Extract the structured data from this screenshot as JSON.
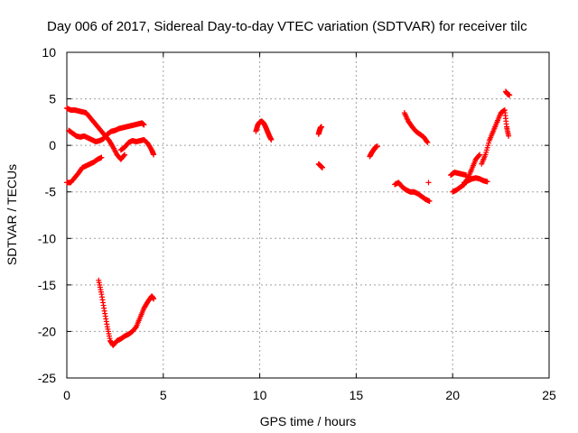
{
  "chart_data": {
    "type": "scatter",
    "title": "Day 006 of 2017, Sidereal Day-to-day VTEC variation (SDTVAR) for receiver tilc",
    "xlabel": "GPS time / hours",
    "ylabel": "SDTVAR / TECUs",
    "xlim": [
      0,
      25
    ],
    "ylim": [
      -25,
      10
    ],
    "xticks": [
      0,
      5,
      10,
      15,
      20,
      25
    ],
    "yticks": [
      -25,
      -20,
      -15,
      -10,
      -5,
      0,
      5,
      10
    ],
    "grid": true,
    "marker": "plus",
    "color": "#ff0000",
    "series": [
      {
        "x": [
          0.0,
          0.2,
          0.4,
          0.6,
          0.8,
          1.0,
          1.2,
          1.4,
          1.6,
          1.8,
          2.0,
          2.2,
          2.4,
          2.6,
          2.8,
          3.0
        ],
        "y": [
          4.0,
          3.8,
          3.8,
          3.7,
          3.6,
          3.5,
          3.0,
          2.5,
          2.0,
          1.5,
          1.0,
          0.5,
          -0.2,
          -1.0,
          -1.5,
          -1.0
        ]
      },
      {
        "x": [
          0.1,
          0.3,
          0.5,
          0.7,
          0.9,
          1.1,
          1.3,
          1.5,
          1.7,
          1.9,
          2.1,
          2.3,
          2.5,
          2.7,
          2.9,
          3.1,
          3.3,
          3.5,
          3.7,
          3.9,
          4.0
        ],
        "y": [
          1.6,
          1.3,
          1.0,
          0.9,
          1.0,
          0.8,
          0.6,
          0.4,
          0.5,
          0.7,
          1.2,
          1.5,
          1.6,
          1.8,
          1.9,
          2.0,
          2.1,
          2.2,
          2.3,
          2.4,
          2.2
        ]
      },
      {
        "x": [
          0.0,
          0.2,
          0.4,
          0.6,
          0.8,
          1.0,
          1.2,
          1.4,
          1.6,
          1.8
        ],
        "y": [
          -4.0,
          -4.0,
          -3.5,
          -3.0,
          -2.4,
          -2.2,
          -2.0,
          -1.8,
          -1.5,
          -1.3
        ]
      },
      {
        "x": [
          2.8,
          3.0,
          3.2,
          3.4,
          3.6,
          3.8,
          4.0,
          4.2,
          4.4,
          4.5
        ],
        "y": [
          -0.5,
          -0.2,
          0.3,
          0.5,
          0.4,
          0.5,
          0.6,
          0.2,
          -0.5,
          -1.0
        ]
      },
      {
        "x": [
          1.65,
          1.8,
          1.95,
          2.1,
          2.25,
          2.4,
          2.6,
          2.8,
          3.0,
          3.2,
          3.4,
          3.6,
          3.8,
          4.0,
          4.2,
          4.4,
          4.5
        ],
        "y": [
          -14.5,
          -16.0,
          -17.8,
          -19.5,
          -21.0,
          -21.5,
          -21.0,
          -20.8,
          -20.5,
          -20.3,
          -20.0,
          -19.5,
          -18.5,
          -17.5,
          -16.8,
          -16.2,
          -16.5
        ]
      },
      {
        "x": [
          9.8,
          9.9,
          10.0,
          10.1,
          10.2,
          10.3,
          10.4,
          10.5,
          10.6
        ],
        "y": [
          1.5,
          2.2,
          2.5,
          2.6,
          2.4,
          2.0,
          1.5,
          1.0,
          0.6
        ]
      },
      {
        "x": [
          13.05,
          13.1,
          13.15,
          13.2
        ],
        "y": [
          1.2,
          1.6,
          1.9,
          2.0
        ]
      },
      {
        "x": [
          13.05,
          13.15,
          13.25
        ],
        "y": [
          -2.0,
          -2.2,
          -2.4
        ]
      },
      {
        "x": [
          15.7,
          15.8,
          15.9,
          16.0,
          16.1
        ],
        "y": [
          -1.2,
          -0.8,
          -0.5,
          -0.2,
          -0.1
        ]
      },
      {
        "x": [
          17.5,
          17.7,
          17.9,
          18.1,
          18.3,
          18.5,
          18.7
        ],
        "y": [
          3.5,
          2.6,
          2.0,
          1.5,
          1.2,
          0.9,
          0.3
        ]
      },
      {
        "x": [
          17.0,
          17.2,
          17.4,
          17.6,
          17.8,
          18.0,
          18.2,
          18.4,
          18.6,
          18.8
        ],
        "y": [
          -4.2,
          -4.0,
          -4.5,
          -4.8,
          -5.0,
          -5.0,
          -5.2,
          -5.5,
          -5.8,
          -6.0
        ]
      },
      {
        "x": [
          18.75
        ],
        "y": [
          -4.0
        ]
      },
      {
        "x": [
          19.9,
          20.1,
          20.3,
          20.5,
          20.7
        ],
        "y": [
          -3.2,
          -2.9,
          -3.0,
          -3.1,
          -3.2
        ]
      },
      {
        "x": [
          20.0,
          20.2,
          20.4,
          20.6,
          20.8,
          21.0,
          21.2,
          21.4
        ],
        "y": [
          -5.0,
          -4.8,
          -4.5,
          -4.2,
          -3.5,
          -2.5,
          -1.5,
          -1.0
        ]
      },
      {
        "x": [
          20.6,
          20.8,
          21.0,
          21.2,
          21.4,
          21.6,
          21.8
        ],
        "y": [
          -4.0,
          -3.8,
          -3.6,
          -3.5,
          -3.6,
          -3.8,
          -3.9
        ]
      },
      {
        "x": [
          21.5,
          21.7,
          21.9,
          22.1,
          22.3,
          22.5,
          22.7,
          22.8,
          22.9
        ],
        "y": [
          -2.0,
          -1.0,
          0.5,
          1.5,
          2.5,
          3.5,
          3.8,
          2.0,
          1.0
        ]
      },
      {
        "x": [
          22.75,
          22.85,
          22.95
        ],
        "y": [
          5.8,
          5.5,
          5.4
        ]
      }
    ]
  }
}
